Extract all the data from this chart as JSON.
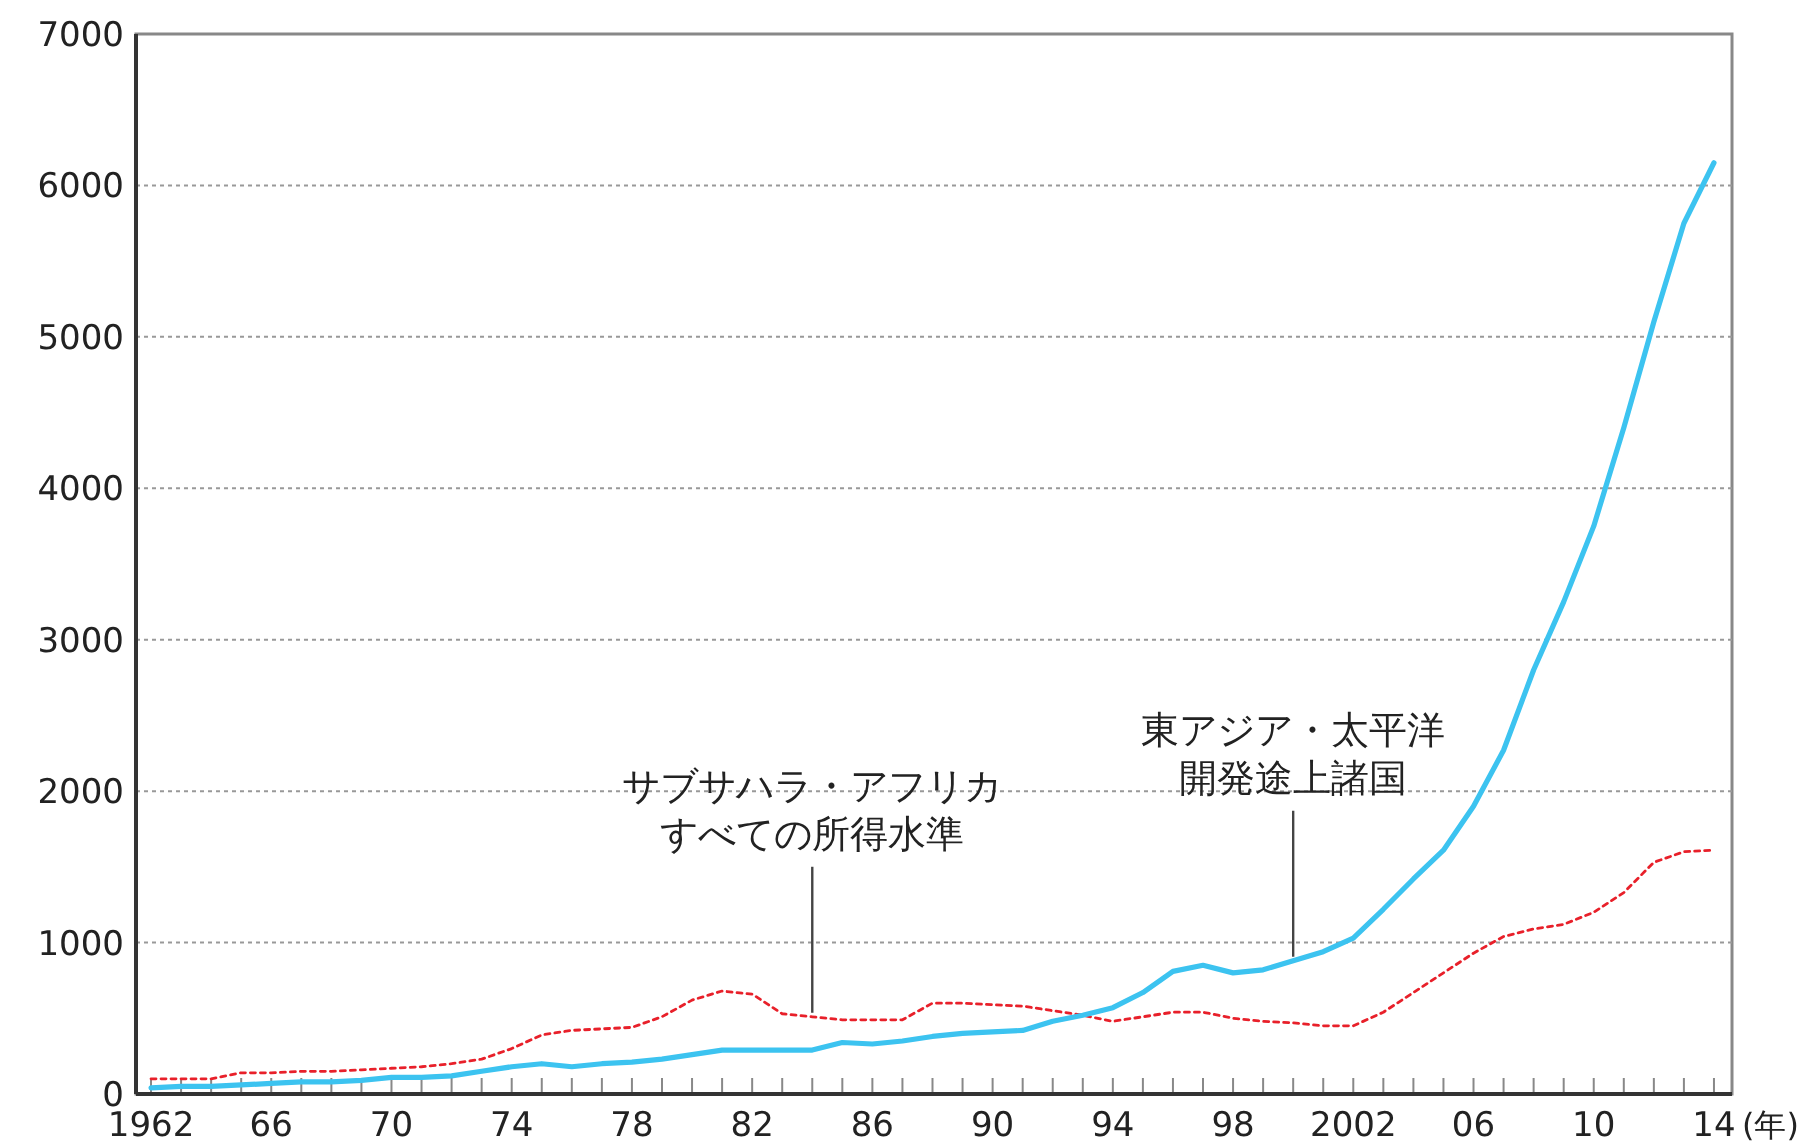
{
  "chart_data": {
    "type": "line",
    "x": [
      1962,
      1963,
      1964,
      1965,
      1966,
      1967,
      1968,
      1969,
      1970,
      1971,
      1972,
      1973,
      1974,
      1975,
      1976,
      1977,
      1978,
      1979,
      1980,
      1981,
      1982,
      1983,
      1984,
      1985,
      1986,
      1987,
      1988,
      1989,
      1990,
      1991,
      1992,
      1993,
      1994,
      1995,
      1996,
      1997,
      1998,
      1999,
      2000,
      2001,
      2002,
      2003,
      2004,
      2005,
      2006,
      2007,
      2008,
      2009,
      2010,
      2011,
      2012,
      2013,
      2014
    ],
    "series": [
      {
        "color": "#e8202a",
        "line_style": "dotted",
        "values": [
          100,
          100,
          100,
          140,
          140,
          150,
          150,
          160,
          170,
          180,
          200,
          230,
          300,
          390,
          420,
          430,
          440,
          510,
          620,
          680,
          660,
          530,
          510,
          490,
          490,
          490,
          600,
          600,
          590,
          580,
          550,
          520,
          480,
          510,
          540,
          540,
          500,
          480,
          470,
          450,
          450,
          540,
          670,
          800,
          930,
          1040,
          1090,
          1120,
          1200,
          1330,
          1530,
          1600,
          1610
        ]
      },
      {
        "color": "#3cc3f0",
        "line_style": "solid",
        "values": [
          40,
          50,
          50,
          60,
          70,
          80,
          80,
          90,
          110,
          110,
          120,
          150,
          180,
          200,
          180,
          200,
          210,
          230,
          260,
          290,
          290,
          290,
          290,
          340,
          330,
          350,
          380,
          400,
          410,
          420,
          480,
          520,
          570,
          670,
          810,
          850,
          800,
          820,
          880,
          940,
          1030,
          1220,
          1420,
          1610,
          1900,
          2270,
          2800,
          3250,
          3750,
          4400,
          5100,
          5750,
          6150
        ]
      }
    ],
    "xlim": [
      1961.5,
      2014.6
    ],
    "xticks": [
      {
        "value": 1962,
        "label": "1962"
      },
      {
        "value": 1963,
        "label": null
      },
      {
        "value": 1964,
        "label": null
      },
      {
        "value": 1965,
        "label": null
      },
      {
        "value": 1966,
        "label": "66"
      },
      {
        "value": 1967,
        "label": null
      },
      {
        "value": 1968,
        "label": null
      },
      {
        "value": 1969,
        "label": null
      },
      {
        "value": 1970,
        "label": "70"
      },
      {
        "value": 1971,
        "label": null
      },
      {
        "value": 1972,
        "label": null
      },
      {
        "value": 1973,
        "label": null
      },
      {
        "value": 1974,
        "label": "74"
      },
      {
        "value": 1975,
        "label": null
      },
      {
        "value": 1976,
        "label": null
      },
      {
        "value": 1977,
        "label": null
      },
      {
        "value": 1978,
        "label": "78"
      },
      {
        "value": 1979,
        "label": null
      },
      {
        "value": 1980,
        "label": null
      },
      {
        "value": 1981,
        "label": null
      },
      {
        "value": 1982,
        "label": "82"
      },
      {
        "value": 1983,
        "label": null
      },
      {
        "value": 1984,
        "label": null
      },
      {
        "value": 1985,
        "label": null
      },
      {
        "value": 1986,
        "label": "86"
      },
      {
        "value": 1987,
        "label": null
      },
      {
        "value": 1988,
        "label": null
      },
      {
        "value": 1989,
        "label": null
      },
      {
        "value": 1990,
        "label": "90"
      },
      {
        "value": 1991,
        "label": null
      },
      {
        "value": 1992,
        "label": null
      },
      {
        "value": 1993,
        "label": null
      },
      {
        "value": 1994,
        "label": "94"
      },
      {
        "value": 1995,
        "label": null
      },
      {
        "value": 1996,
        "label": null
      },
      {
        "value": 1997,
        "label": null
      },
      {
        "value": 1998,
        "label": "98"
      },
      {
        "value": 1999,
        "label": null
      },
      {
        "value": 2000,
        "label": null
      },
      {
        "value": 2001,
        "label": null
      },
      {
        "value": 2002,
        "label": "2002"
      },
      {
        "value": 2003,
        "label": null
      },
      {
        "value": 2004,
        "label": null
      },
      {
        "value": 2005,
        "label": null
      },
      {
        "value": 2006,
        "label": "06"
      },
      {
        "value": 2007,
        "label": null
      },
      {
        "value": 2008,
        "label": null
      },
      {
        "value": 2009,
        "label": null
      },
      {
        "value": 2010,
        "label": "10"
      },
      {
        "value": 2011,
        "label": null
      },
      {
        "value": 2012,
        "label": null
      },
      {
        "value": 2013,
        "label": null
      },
      {
        "value": 2014,
        "label": "14"
      }
    ],
    "xlabel": "(年)",
    "ylim": [
      0,
      7000
    ],
    "yticks": [
      0,
      1000,
      2000,
      3000,
      4000,
      5000,
      6000,
      7000
    ],
    "grid": "y",
    "annotations": [
      "サブサハラ・アフリカ",
      {
        "text": "すべての所得水準",
        "x": 1984,
        "y": 510
      },
      "東アジア・太平洋",
      {
        "text": "開発途上諸国",
        "x": 2000,
        "y": 880
      }
    ]
  }
}
